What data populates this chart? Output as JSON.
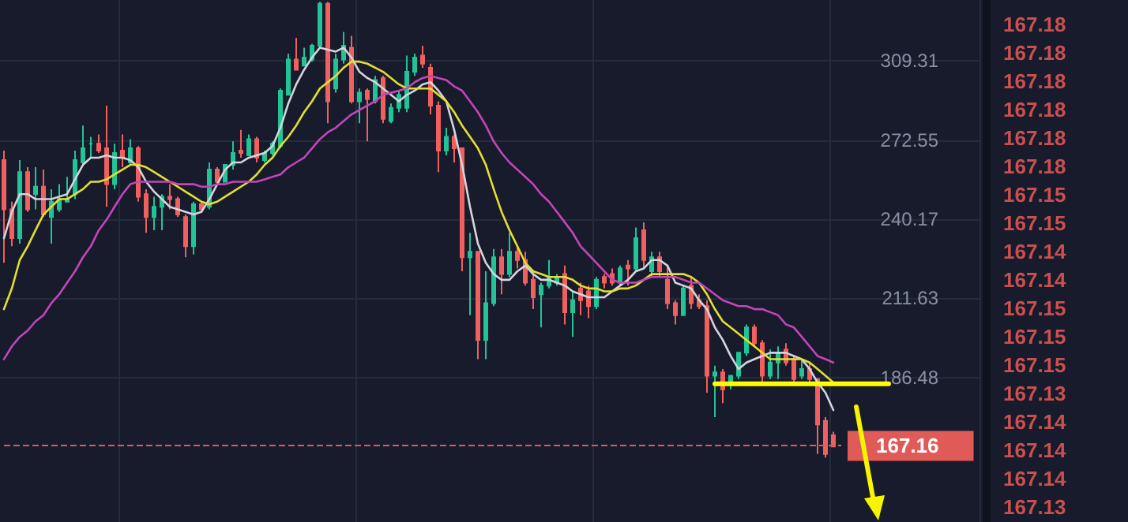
{
  "chart_data": [
    {
      "type": "candlestick",
      "categories": [
        null,
        null,
        null,
        null,
        null,
        null,
        null,
        null,
        null,
        null,
        null,
        null,
        null,
        null,
        null,
        null,
        null,
        null,
        null,
        null,
        null,
        null,
        null,
        null,
        null,
        null,
        null,
        null,
        null,
        null,
        null,
        null,
        null,
        null,
        null,
        null,
        null,
        null,
        null,
        null,
        null,
        null,
        null,
        null,
        null,
        null,
        null,
        null,
        null,
        null,
        null,
        null,
        null,
        null,
        null,
        null,
        null,
        null,
        null,
        null,
        null,
        null,
        null,
        null,
        null,
        null,
        null,
        null,
        null,
        null,
        null,
        null,
        null,
        null,
        null,
        null,
        null,
        null,
        null,
        null,
        null,
        null,
        null,
        null,
        null,
        null,
        null,
        null,
        null,
        null,
        null,
        null,
        null,
        null,
        null,
        null,
        null,
        null,
        null,
        null,
        null,
        null,
        null,
        null,
        null,
        null,
        null,
        null,
        null,
        null,
        null,
        null,
        null,
        null,
        null,
        null,
        null,
        null,
        null,
        null,
        null,
        null,
        null,
        null
      ],
      "ohlc": [
        [
          264,
          268,
          224,
          244
        ],
        [
          244,
          247,
          230,
          233
        ],
        [
          233,
          264,
          231,
          259
        ],
        [
          259,
          261,
          243,
          244
        ],
        [
          250,
          261,
          244,
          253
        ],
        [
          253,
          260,
          241,
          242
        ],
        [
          241,
          252,
          231,
          247
        ],
        [
          244,
          254,
          243,
          248
        ],
        [
          247,
          257,
          247,
          248
        ],
        [
          250,
          268,
          248,
          264
        ],
        [
          263,
          279,
          262,
          269
        ],
        [
          271,
          274,
          265,
          271
        ],
        [
          271,
          275,
          267,
          268
        ],
        [
          269,
          288,
          245,
          254
        ],
        [
          254,
          271,
          252,
          267
        ],
        [
          268,
          275,
          261,
          265
        ],
        [
          263,
          273,
          262,
          269
        ],
        [
          269,
          270,
          247,
          249
        ],
        [
          250,
          252,
          235,
          241
        ],
        [
          241,
          249,
          236,
          245
        ],
        [
          245,
          250,
          236,
          249
        ],
        [
          249,
          254,
          244,
          248
        ],
        [
          248,
          249,
          241,
          242
        ],
        [
          241,
          242,
          226,
          230
        ],
        [
          230,
          247,
          227,
          246
        ],
        [
          246,
          247,
          243,
          244
        ],
        [
          245,
          263,
          244,
          260
        ],
        [
          260,
          261,
          254,
          255
        ],
        [
          255,
          262,
          255,
          262
        ],
        [
          262,
          272,
          260,
          267
        ],
        [
          268,
          277,
          265,
          267
        ],
        [
          266,
          275,
          266,
          273
        ],
        [
          273,
          274,
          263,
          265
        ],
        [
          264,
          268,
          263,
          267
        ],
        [
          267,
          272,
          266,
          271
        ],
        [
          270,
          296,
          269,
          295
        ],
        [
          293,
          313,
          293,
          310
        ],
        [
          310,
          321,
          305,
          305
        ],
        [
          307,
          316,
          307,
          311
        ],
        [
          310,
          318,
          309,
          317
        ],
        [
          317,
          340,
          316,
          339
        ],
        [
          339,
          340,
          280,
          290
        ],
        [
          296,
          313,
          294,
          310
        ],
        [
          310,
          324,
          308,
          317
        ],
        [
          316,
          322,
          289,
          290
        ],
        [
          290,
          296,
          280,
          294
        ],
        [
          295,
          296,
          272,
          291
        ],
        [
          290,
          302,
          289,
          300
        ],
        [
          301,
          302,
          280,
          282
        ],
        [
          281,
          289,
          280,
          287
        ],
        [
          287,
          295,
          285,
          293
        ],
        [
          287,
          312,
          285,
          304
        ],
        [
          304,
          313,
          302,
          311
        ],
        [
          312,
          317,
          306,
          308
        ],
        [
          306,
          308,
          284,
          288
        ],
        [
          288,
          290,
          259,
          268
        ],
        [
          268,
          278,
          266,
          274
        ],
        [
          274,
          275,
          263,
          269
        ],
        [
          269,
          269,
          221,
          226
        ],
        [
          226,
          235,
          206,
          228
        ],
        [
          228,
          228,
          192,
          198
        ],
        [
          198,
          221,
          192,
          210
        ],
        [
          210,
          229,
          209,
          226
        ],
        [
          226,
          229,
          213,
          220
        ],
        [
          220,
          235,
          219,
          228
        ],
        [
          228,
          230,
          222,
          225
        ],
        [
          225,
          228,
          216,
          217
        ],
        [
          218,
          221,
          208,
          212
        ],
        [
          213,
          217,
          202,
          216
        ],
        [
          216,
          225,
          215,
          219
        ],
        [
          217,
          220,
          216,
          219
        ],
        [
          220,
          223,
          203,
          207
        ],
        [
          207,
          214,
          199,
          211
        ],
        [
          215,
          217,
          206,
          211
        ],
        [
          214,
          216,
          205,
          209
        ],
        [
          209,
          219,
          208,
          218
        ],
        [
          219,
          220,
          215,
          217
        ],
        [
          220,
          222,
          216,
          217
        ],
        [
          217,
          223,
          216,
          222
        ],
        [
          223,
          225,
          216,
          222
        ],
        [
          222,
          237,
          221,
          233
        ],
        [
          236,
          239,
          222,
          225
        ],
        [
          221,
          228,
          219,
          226
        ],
        [
          226,
          228,
          219,
          221
        ],
        [
          218,
          223,
          208,
          210
        ],
        [
          210,
          211,
          203,
          206
        ],
        [
          206,
          216,
          206,
          215
        ],
        [
          216,
          219,
          208,
          210
        ],
        [
          211,
          213,
          208,
          209
        ],
        [
          209,
          211,
          182,
          187
        ],
        [
          187,
          190,
          175,
          188
        ],
        [
          188,
          189,
          179,
          183
        ],
        [
          185,
          187,
          183,
          187
        ],
        [
          187,
          194,
          186,
          194
        ],
        [
          194,
          203,
          193,
          202
        ],
        [
          202,
          203,
          196,
          197
        ],
        [
          197,
          198,
          185,
          187
        ],
        [
          187,
          195,
          186,
          191
        ],
        [
          191,
          196,
          186,
          194
        ],
        [
          195,
          197,
          190,
          191
        ],
        [
          192,
          193,
          185,
          186
        ],
        [
          187,
          192,
          186,
          189
        ],
        [
          189,
          191,
          185,
          186
        ],
        [
          186,
          186,
          165,
          173
        ],
        [
          174,
          175,
          164,
          165
        ],
        [
          170,
          171,
          167,
          167
        ],
        null,
        null,
        null,
        null,
        null,
        null,
        null,
        null,
        null,
        null,
        null,
        null,
        null,
        null,
        null,
        null,
        null,
        null
      ],
      "series": [
        {
          "type": "line",
          "color": "#d4d4dc",
          "values": [
            233,
            243,
            250,
            250,
            248,
            248,
            248,
            249,
            250,
            256,
            262,
            265,
            265,
            266,
            265,
            265,
            264,
            261,
            255,
            251,
            248,
            245,
            244,
            243,
            242,
            243,
            248,
            254,
            260,
            263,
            263,
            265,
            266,
            267,
            270,
            278,
            289,
            298,
            305,
            311,
            316,
            315,
            314,
            316,
            311,
            304,
            301,
            299,
            296,
            293,
            290,
            293,
            295,
            298,
            299,
            295,
            290,
            277,
            262,
            245,
            231,
            224,
            220,
            218,
            218,
            221,
            223,
            220,
            218,
            218,
            217,
            216,
            214,
            213,
            212,
            212,
            212,
            214,
            216,
            218,
            221,
            222,
            225,
            225,
            223,
            217,
            216,
            215,
            211,
            208,
            202,
            198,
            193,
            189,
            191,
            192,
            193,
            194,
            194,
            194,
            193,
            192,
            189,
            185,
            182,
            177,
            null,
            null,
            null,
            null,
            null,
            null,
            null,
            null,
            null,
            null,
            null,
            null,
            null,
            null,
            null,
            null,
            null,
            null
          ]
        },
        {
          "type": "line",
          "color": "#e3df2e",
          "values": [
            208,
            215,
            225,
            230,
            236,
            242,
            245,
            248,
            248,
            250,
            252,
            255,
            255,
            256,
            258,
            260,
            262,
            262,
            261,
            259,
            257,
            255,
            253,
            251,
            249,
            247,
            246,
            247,
            249,
            251,
            253,
            255,
            258,
            262,
            265,
            270,
            274,
            279,
            285,
            290,
            296,
            299,
            302,
            306,
            309,
            309,
            308,
            306,
            304,
            301,
            298,
            296,
            296,
            296,
            296,
            293,
            290,
            285,
            279,
            274,
            269,
            262,
            252,
            243,
            236,
            230,
            224,
            221,
            220,
            219,
            219,
            219,
            218,
            216,
            215,
            215,
            214,
            214,
            215,
            215,
            216,
            218,
            220,
            220,
            220,
            220,
            220,
            219,
            217,
            213,
            208,
            204,
            202,
            200,
            198,
            196,
            194,
            192,
            192,
            192,
            192,
            192,
            191,
            189,
            187,
            185,
            null,
            null,
            null,
            null,
            null,
            null,
            null,
            null,
            null,
            null,
            null,
            null,
            null,
            null,
            null,
            null,
            null,
            null
          ]
        },
        {
          "type": "line",
          "color": "#c345b8",
          "values": [
            192,
            196,
            199,
            201,
            204,
            206,
            210,
            213,
            217,
            221,
            226,
            230,
            236,
            240,
            245,
            250,
            254,
            255,
            255,
            255,
            255,
            255,
            254,
            254,
            254,
            253,
            253,
            254,
            254,
            255,
            255,
            255,
            255,
            256,
            257,
            258,
            261,
            263,
            265,
            269,
            273,
            276,
            278,
            281,
            284,
            286,
            288,
            290,
            293,
            294,
            295,
            296,
            299,
            301,
            302,
            301,
            300,
            297,
            295,
            290,
            285,
            279,
            272,
            267,
            263,
            260,
            257,
            254,
            250,
            247,
            243,
            239,
            235,
            230,
            227,
            224,
            221,
            218,
            217,
            217,
            217,
            218,
            219,
            219,
            219,
            219,
            218,
            217,
            217,
            215,
            213,
            211,
            210,
            209,
            209,
            208,
            208,
            207,
            206,
            203,
            202,
            199,
            196,
            193,
            192,
            191,
            null,
            null,
            null,
            null,
            null,
            null,
            null,
            null,
            null,
            null,
            null,
            null,
            null,
            null,
            null,
            null,
            null,
            null
          ]
        },
        {
          "type": "line",
          "color": "#ffff00",
          "values": [
            null,
            null,
            null,
            null,
            null,
            null,
            null,
            null,
            null,
            null,
            null,
            null,
            null,
            null,
            null,
            null,
            null,
            null,
            null,
            null,
            null,
            null,
            null,
            null,
            null,
            null,
            null,
            null,
            null,
            null,
            null,
            null,
            null,
            null,
            null,
            null,
            null,
            null,
            null,
            null,
            null,
            null,
            null,
            null,
            null,
            null,
            null,
            null,
            null,
            null,
            null,
            null,
            null,
            null,
            null,
            null,
            null,
            null,
            null,
            null,
            null,
            null,
            null,
            null,
            null,
            null,
            null,
            null,
            null,
            null,
            null,
            null,
            null,
            null,
            null,
            null,
            null,
            null,
            null,
            null,
            null,
            null,
            null,
            null,
            null,
            null,
            null,
            null,
            null,
            null,
            184.6,
            184.6,
            184.6,
            184.6,
            184.6,
            184.6,
            184.6,
            184.6,
            184.6,
            184.6,
            184.6,
            184.6,
            184.6,
            184.6,
            184.6,
            184.6,
            184.6,
            184.6,
            184.6,
            184.6,
            184.6,
            184.6,
            184.6,
            null,
            null,
            null,
            null,
            null,
            null,
            null,
            null,
            null,
            null,
            null
          ]
        }
      ],
      "ylim": [
        148,
        341
      ],
      "yticks": [
        309.31,
        272.55,
        240.17,
        211.63,
        186.48
      ],
      "log": true,
      "grid": true,
      "tick_labels": "y",
      "ref_lines": [
        {
          "axis": "y",
          "value": 167.16,
          "label": "167.16",
          "color": "#e05a57",
          "line_style": "dashed"
        }
      ],
      "annotations": [
        "167.18",
        "167.18",
        "167.18",
        "167.18",
        "167.18",
        "167.18",
        "167.15",
        "167.15",
        "167.14",
        "167.14",
        "167.15",
        "167.15",
        "167.15",
        "167.13",
        "167.14",
        "167.14",
        "167.14",
        "167.13"
      ]
    }
  ]
}
